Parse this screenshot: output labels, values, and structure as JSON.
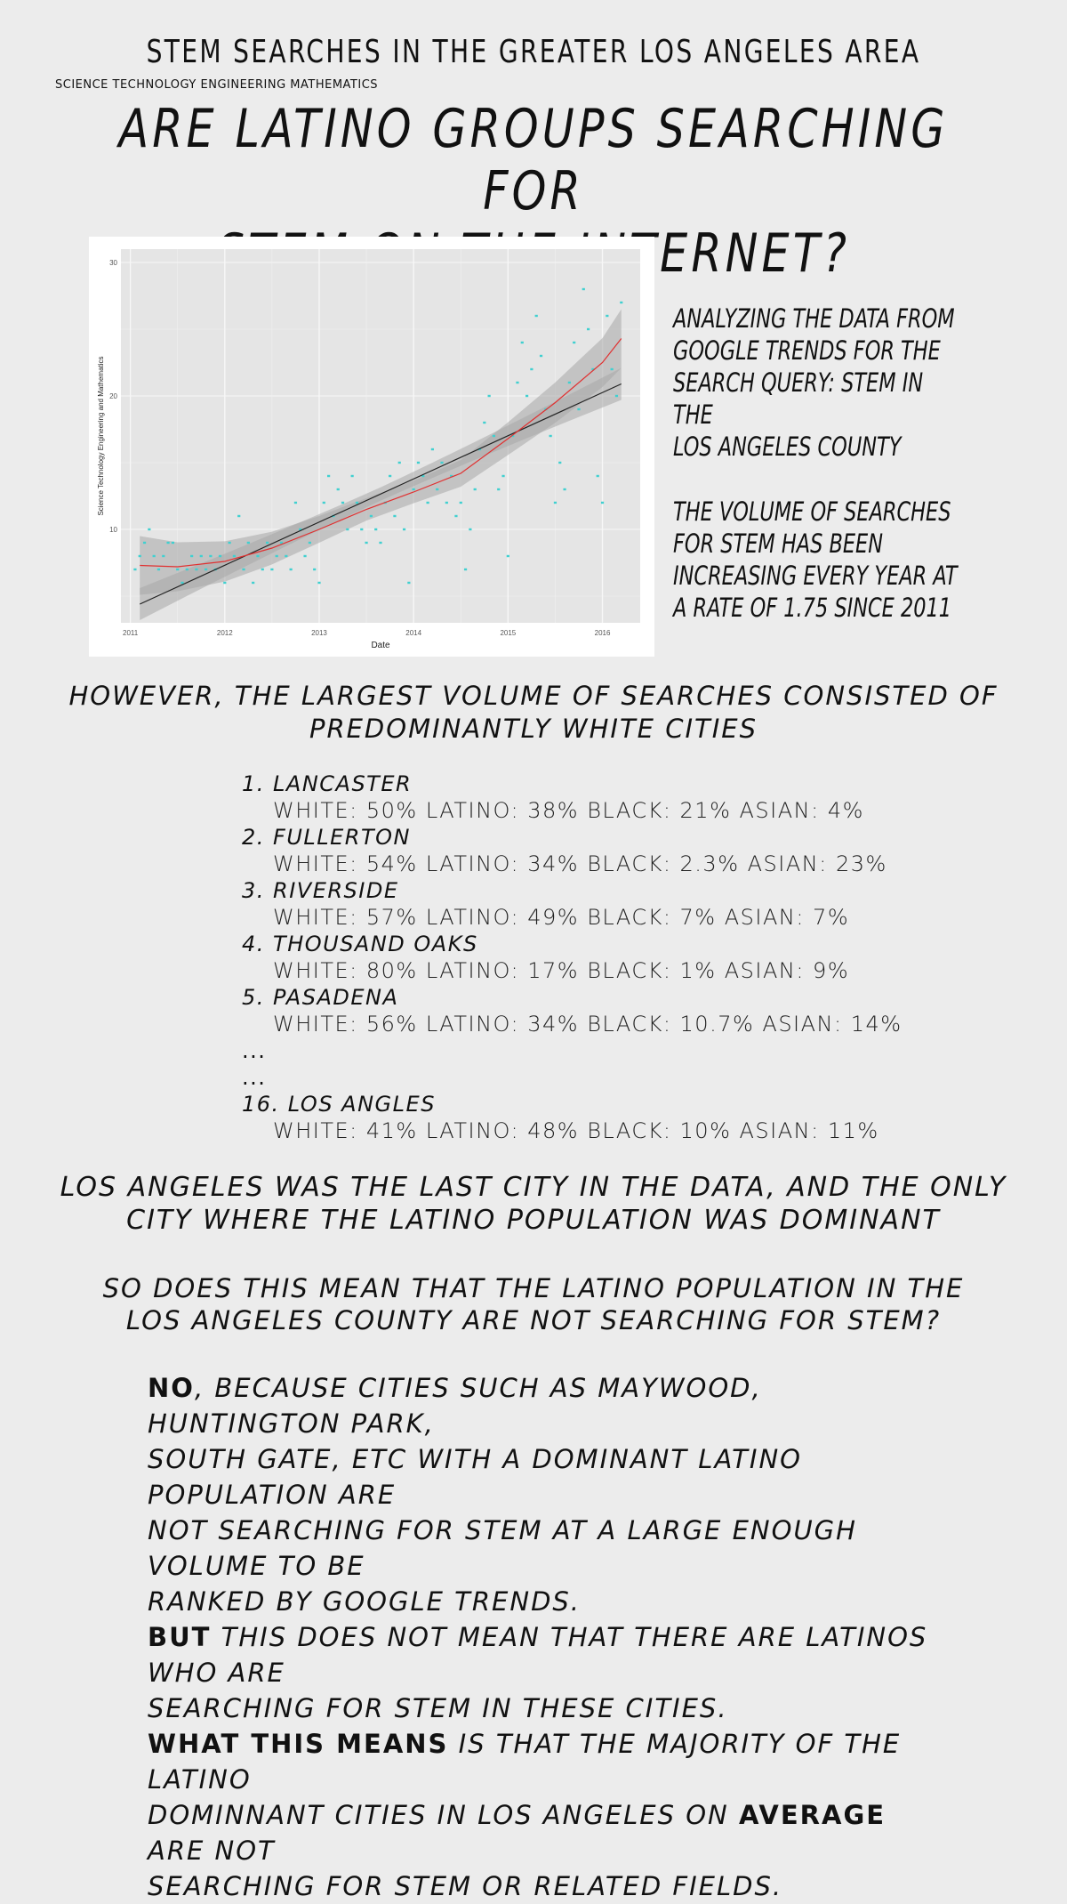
{
  "top_title": "STEM SEARCHES IN THE GREATER LOS ANGELES AREA",
  "subtitle": "SCIENCE TECHNOLOGY ENGINEERING MATHEMATICS",
  "headline": {
    "line1": "ARE LATINO GROUPS SEARCHING FOR",
    "line2": "STEM ON THE INTERNET?"
  },
  "side_text": {
    "para1": [
      "ANALYZING THE DATA FROM",
      "GOOGLE TRENDS FOR THE",
      "SEARCH QUERY: STEM IN THE",
      "LOS ANGELES COUNTY"
    ],
    "para2": [
      "THE VOLUME OF SEARCHES",
      "FOR STEM HAS BEEN",
      "INCREASING EVERY YEAR AT",
      "A RATE OF 1.75 SINCE 2011"
    ]
  },
  "however": [
    "HOWEVER, THE LARGEST VOLUME OF SEARCHES CONSISTED OF",
    "PREDOMINANTLY WHITE CITIES"
  ],
  "cities": [
    {
      "name": "1. LANCASTER",
      "stats": "WHITE: 50% LATINO: 38% BLACK: 21% ASIAN: 4%"
    },
    {
      "name": "2. FULLERTON",
      "stats": "WHITE: 54% LATINO: 34% BLACK: 2.3% ASIAN: 23%"
    },
    {
      "name": "3. RIVERSIDE",
      "stats": "WHITE: 57% LATINO: 49% BLACK: 7% ASIAN: 7%"
    },
    {
      "name": "4. THOUSAND OAKS",
      "stats": "WHITE: 80% LATINO: 17% BLACK: 1% ASIAN: 9%"
    },
    {
      "name": "5. PASADENA",
      "stats": "WHITE: 56% LATINO: 34% BLACK: 10.7% ASIAN: 14%"
    }
  ],
  "ellipsis": [
    "...",
    "..."
  ],
  "last_city": {
    "name": "16. LOS ANGLES",
    "stats": "WHITE: 41% LATINO: 48% BLACK: 10% ASIAN: 11%"
  },
  "la_last": [
    "LOS ANGELES WAS THE LAST CITY IN THE DATA, AND THE ONLY",
    "CITY WHERE THE LATINO POPULATION WAS DOMINANT"
  ],
  "question": [
    "SO DOES THIS MEAN THAT THE LATINO POPULATION IN THE",
    "LOS ANGELES COUNTY ARE NOT SEARCHING FOR STEM?"
  ],
  "answer": {
    "no": "NO",
    "l1": ", BECAUSE CITIES SUCH AS MAYWOOD, HUNTINGTON PARK,",
    "l2": "SOUTH GATE, ETC WITH A DOMINANT LATINO POPULATION ARE",
    "l3": "NOT SEARCHING FOR STEM AT A LARGE ENOUGH VOLUME TO BE",
    "l4": "RANKED BY GOOGLE TRENDS.",
    "but": "BUT",
    "l5": " THIS DOES NOT MEAN THAT THERE ARE LATINOS WHO ARE",
    "l6": "SEARCHING FOR STEM IN THESE CITIES.",
    "what": "WHAT THIS MEANS",
    "l7": " IS THAT THE MAJORITY OF THE LATINO",
    "l8a": "DOMINNANT CITIES IN LOS ANGELES ON ",
    "average": "AVERAGE",
    "l8b": " ARE NOT",
    "l9": "SEARCHING FOR STEM OR RELATED FIELDS."
  },
  "chart_data": {
    "type": "scatter",
    "xlabel": "Date",
    "ylabel": "Science Technology Engineering and Mathematics",
    "xlim": [
      2010.9,
      2016.4
    ],
    "ylim": [
      3,
      31
    ],
    "x_ticks": [
      "2011",
      "2012",
      "2013",
      "2014",
      "2015",
      "2016"
    ],
    "y_ticks": [
      "10",
      "20",
      "30"
    ],
    "grid": true,
    "colors": {
      "points": "#40d0d0",
      "linear_fit": "#222222",
      "loess_fit": "#e03030",
      "band": "#a8a8a8",
      "panel": "#e5e5e5"
    },
    "points": [
      [
        2011.05,
        7
      ],
      [
        2011.1,
        8
      ],
      [
        2011.15,
        9
      ],
      [
        2011.2,
        10
      ],
      [
        2011.25,
        8
      ],
      [
        2011.3,
        7
      ],
      [
        2011.35,
        8
      ],
      [
        2011.4,
        9
      ],
      [
        2011.45,
        9
      ],
      [
        2011.5,
        7
      ],
      [
        2011.55,
        6
      ],
      [
        2011.6,
        7
      ],
      [
        2011.65,
        8
      ],
      [
        2011.7,
        7
      ],
      [
        2011.75,
        8
      ],
      [
        2011.8,
        7
      ],
      [
        2011.85,
        8
      ],
      [
        2011.9,
        7
      ],
      [
        2011.95,
        8
      ],
      [
        2012.0,
        6
      ],
      [
        2012.05,
        9
      ],
      [
        2012.1,
        8
      ],
      [
        2012.15,
        11
      ],
      [
        2012.2,
        7
      ],
      [
        2012.25,
        9
      ],
      [
        2012.3,
        6
      ],
      [
        2012.35,
        8
      ],
      [
        2012.4,
        7
      ],
      [
        2012.45,
        9
      ],
      [
        2012.5,
        7
      ],
      [
        2012.55,
        8
      ],
      [
        2012.6,
        9
      ],
      [
        2012.65,
        8
      ],
      [
        2012.7,
        7
      ],
      [
        2012.75,
        12
      ],
      [
        2012.8,
        10
      ],
      [
        2012.85,
        8
      ],
      [
        2012.9,
        9
      ],
      [
        2012.95,
        7
      ],
      [
        2013.0,
        6
      ],
      [
        2013.05,
        12
      ],
      [
        2013.1,
        14
      ],
      [
        2013.15,
        11
      ],
      [
        2013.2,
        13
      ],
      [
        2013.25,
        12
      ],
      [
        2013.3,
        10
      ],
      [
        2013.35,
        14
      ],
      [
        2013.4,
        12
      ],
      [
        2013.45,
        10
      ],
      [
        2013.5,
        9
      ],
      [
        2013.55,
        11
      ],
      [
        2013.6,
        10
      ],
      [
        2013.65,
        9
      ],
      [
        2013.7,
        12
      ],
      [
        2013.75,
        14
      ],
      [
        2013.8,
        11
      ],
      [
        2013.85,
        15
      ],
      [
        2013.9,
        10
      ],
      [
        2013.95,
        6
      ],
      [
        2014.0,
        13
      ],
      [
        2014.05,
        15
      ],
      [
        2014.1,
        14
      ],
      [
        2014.15,
        12
      ],
      [
        2014.2,
        16
      ],
      [
        2014.25,
        13
      ],
      [
        2014.3,
        15
      ],
      [
        2014.35,
        12
      ],
      [
        2014.4,
        14
      ],
      [
        2014.45,
        11
      ],
      [
        2014.5,
        12
      ],
      [
        2014.55,
        7
      ],
      [
        2014.6,
        10
      ],
      [
        2014.65,
        13
      ],
      [
        2014.7,
        16
      ],
      [
        2014.75,
        18
      ],
      [
        2014.8,
        20
      ],
      [
        2014.85,
        17
      ],
      [
        2014.9,
        13
      ],
      [
        2014.95,
        14
      ],
      [
        2015.0,
        8
      ],
      [
        2015.05,
        17
      ],
      [
        2015.1,
        21
      ],
      [
        2015.15,
        24
      ],
      [
        2015.2,
        20
      ],
      [
        2015.25,
        22
      ],
      [
        2015.3,
        26
      ],
      [
        2015.35,
        23
      ],
      [
        2015.4,
        19
      ],
      [
        2015.45,
        17
      ],
      [
        2015.5,
        12
      ],
      [
        2015.55,
        15
      ],
      [
        2015.6,
        13
      ],
      [
        2015.65,
        21
      ],
      [
        2015.7,
        24
      ],
      [
        2015.75,
        19
      ],
      [
        2015.8,
        28
      ],
      [
        2015.85,
        25
      ],
      [
        2015.9,
        22
      ],
      [
        2015.95,
        14
      ],
      [
        2016.0,
        12
      ],
      [
        2016.05,
        26
      ],
      [
        2016.1,
        22
      ],
      [
        2016.15,
        20
      ],
      [
        2016.2,
        27
      ]
    ],
    "linear_fit": [
      [
        2011.1,
        4.4
      ],
      [
        2016.2,
        20.9
      ]
    ],
    "loess_fit": [
      [
        2011.1,
        7.3
      ],
      [
        2011.5,
        7.2
      ],
      [
        2012.0,
        7.6
      ],
      [
        2012.5,
        8.6
      ],
      [
        2013.0,
        10.0
      ],
      [
        2013.5,
        11.5
      ],
      [
        2014.0,
        12.8
      ],
      [
        2014.5,
        14.2
      ],
      [
        2015.0,
        16.8
      ],
      [
        2015.5,
        19.5
      ],
      [
        2016.0,
        22.5
      ],
      [
        2016.2,
        24.3
      ]
    ]
  }
}
